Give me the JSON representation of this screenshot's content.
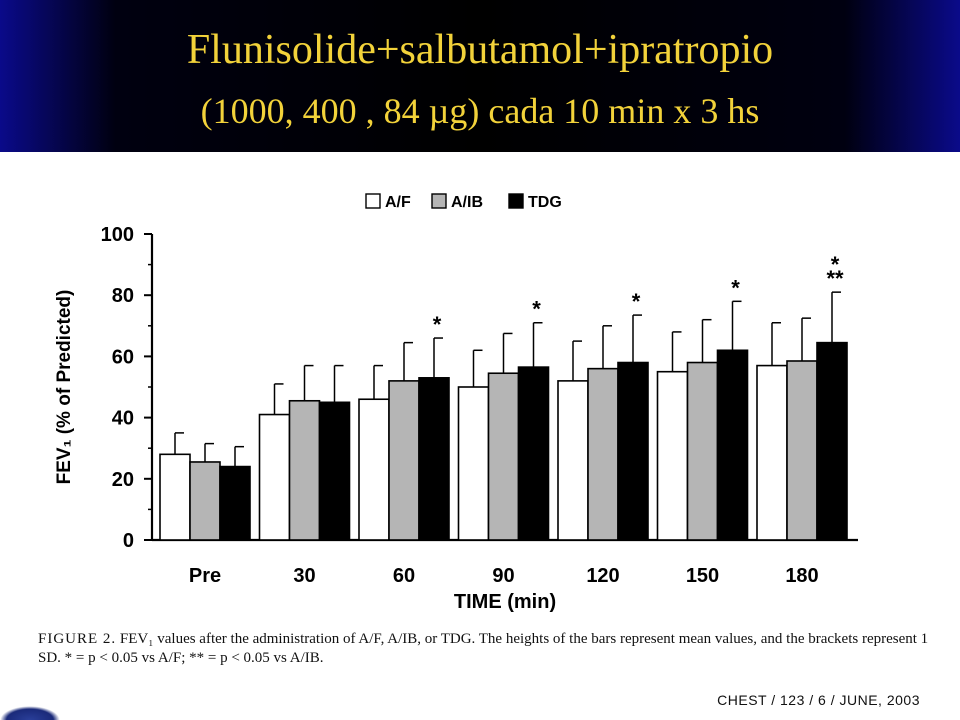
{
  "slide": {
    "title_line1": "Flunisolide+salbutamol+ipratropio",
    "title_line2": "(1000, 400 , 84 µg) cada 10 min x 3 hs",
    "caption_label": "FIGURE 2.",
    "caption_text": " FEV₁ values after the administration of A/F, A/IB, or TDG. The heights of the bars represent mean values, and the brackets represent 1 SD. * = p < 0.05 vs A/F; ** = p < 0.05 vs A/IB.",
    "source": "CHEST / 123 / 6 / JUNE, 2003",
    "colors": {
      "title": "#f2d23a",
      "header_bg": "#000000",
      "header_edge": "#0a0a8a"
    }
  },
  "chart_data": {
    "type": "bar",
    "xlabel": "TIME (min)",
    "ylabel": "FEV₁ (% of Predicted)",
    "ylim": [
      0,
      100
    ],
    "yticks": [
      "0",
      "20",
      "40",
      "60",
      "80",
      "100"
    ],
    "categories": [
      "Pre",
      "30",
      "60",
      "90",
      "120",
      "150",
      "180"
    ],
    "series": [
      {
        "name": "A/F",
        "color": "#ffffff",
        "values": [
          28,
          41,
          46,
          50,
          52,
          55,
          57
        ],
        "sd": [
          7,
          10,
          11,
          12,
          13,
          13,
          14
        ]
      },
      {
        "name": "A/IB",
        "color": "#b5b5b5",
        "values": [
          25.5,
          45.5,
          52,
          54.5,
          56,
          58,
          58.5
        ],
        "sd": [
          6,
          11.5,
          12.5,
          13,
          14,
          14,
          14
        ]
      },
      {
        "name": "TDG",
        "color": "#000000",
        "values": [
          24,
          45,
          53,
          56.5,
          58,
          62,
          64.5
        ],
        "sd": [
          6.5,
          12,
          13,
          14.5,
          15.5,
          16,
          16.5
        ]
      }
    ],
    "annotations": [
      {
        "category": "60",
        "series": "TDG",
        "text": "*"
      },
      {
        "category": "90",
        "series": "TDG",
        "text": "*"
      },
      {
        "category": "120",
        "series": "TDG",
        "text": "*"
      },
      {
        "category": "150",
        "series": "TDG",
        "text": "*"
      },
      {
        "category": "180",
        "series": "TDG",
        "text": "*"
      },
      {
        "category": "180",
        "series": "TDG",
        "text": "**"
      }
    ],
    "legend_position": "top"
  }
}
